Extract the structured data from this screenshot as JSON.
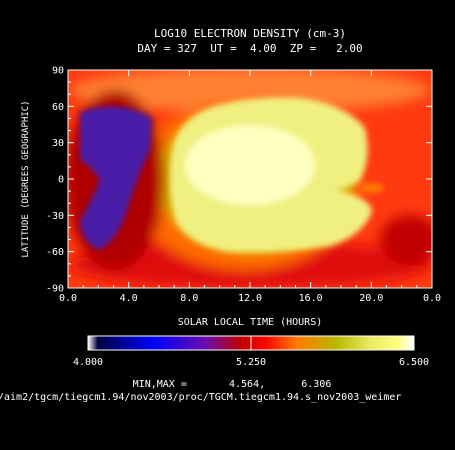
{
  "chart_data": {
    "type": "heatmap",
    "title": "LOG10 ELECTRON DENSITY (cm-3)",
    "subtitle": "DAY = 327  UT =  4.00  ZP =   2.00",
    "xlabel": "SOLAR LOCAL TIME (HOURS)",
    "ylabel": "LATITUDE (DEGREES GEOGRAPHIC)",
    "x_ticks": [
      "0.0",
      "4.0",
      "8.0",
      "12.0",
      "16.0",
      "20.0",
      "0.0"
    ],
    "y_ticks": [
      "90",
      "60",
      "30",
      "0",
      "-30",
      "-60",
      "-90"
    ],
    "colorbar": {
      "min_label": "4.000",
      "mid_label": "5.250",
      "max_label": "6.500",
      "colors": [
        "#ffffff",
        "#000040",
        "#0000ff",
        "#6a0dad",
        "#c00000",
        "#ff0000",
        "#ff7a00",
        "#b8b800",
        "#e8e860",
        "#ffff80",
        "#ffffff"
      ]
    },
    "minmax_text": "MIN,MAX =       4.564,      6.306",
    "file_path": "/aim2/tgcm/tiegcm1.94/nov2003/proc/TGCM.tiegcm1.94.s_nov2003_weimer"
  }
}
